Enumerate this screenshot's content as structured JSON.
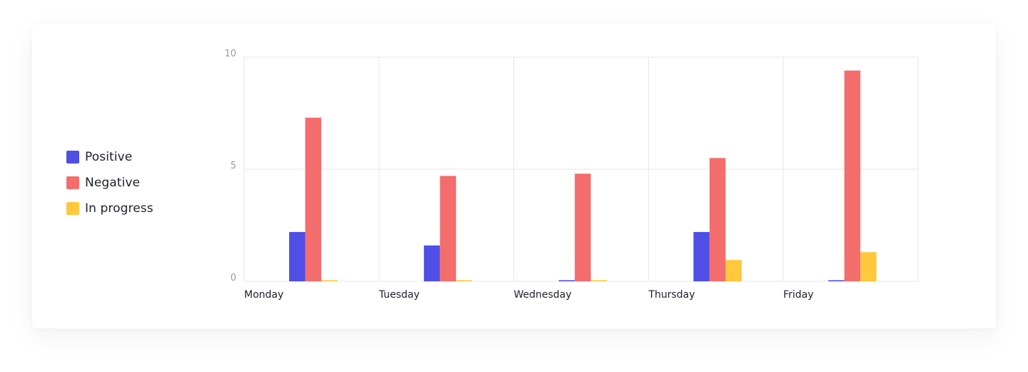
{
  "chart_data": {
    "type": "bar",
    "categories": [
      "Monday",
      "Tuesday",
      "Wednesday",
      "Thursday",
      "Friday"
    ],
    "series": [
      {
        "name": "Positive",
        "color": "#4f4fe6",
        "values": [
          2.2,
          1.6,
          0.05,
          2.2,
          0.05
        ]
      },
      {
        "name": "Negative",
        "color": "#f36d6d",
        "values": [
          7.3,
          4.7,
          4.8,
          5.5,
          9.4
        ]
      },
      {
        "name": "In progress",
        "color": "#ffc83d",
        "values": [
          0.05,
          0.05,
          0.05,
          0.95,
          1.3
        ]
      }
    ],
    "ylim": [
      0,
      10
    ],
    "yticks": [
      "0",
      "5",
      "10"
    ],
    "grid": true,
    "legend_position": "left"
  }
}
